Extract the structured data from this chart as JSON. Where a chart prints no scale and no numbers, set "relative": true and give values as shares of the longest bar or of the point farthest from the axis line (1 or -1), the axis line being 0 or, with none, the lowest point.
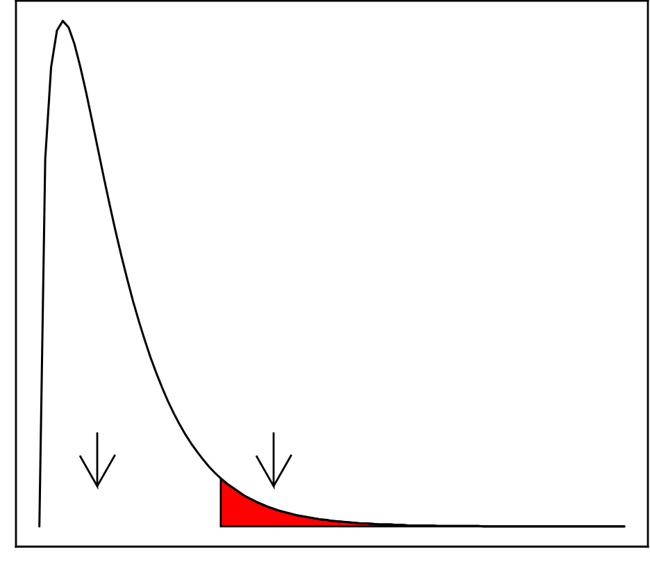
{
  "chart_data": {
    "type": "line",
    "relative": true,
    "categories": [
      null,
      null,
      null,
      null,
      null,
      null,
      null,
      null,
      null,
      null,
      null,
      null,
      null,
      null,
      null,
      null,
      null,
      null,
      null,
      null,
      null,
      null,
      null,
      null,
      null,
      null,
      null,
      null,
      null,
      null,
      null,
      null,
      null,
      null,
      null,
      null,
      null,
      null,
      null,
      null,
      null,
      null,
      null,
      null,
      null,
      null,
      null,
      null,
      null,
      null,
      null,
      null,
      null,
      null,
      null,
      null,
      null,
      null,
      null,
      null,
      null,
      null,
      null,
      null,
      null,
      null,
      null,
      null,
      null,
      null,
      null,
      null,
      null,
      null,
      null,
      null,
      null,
      null,
      null,
      null,
      null,
      null,
      null,
      null,
      null,
      null,
      null,
      null,
      null,
      null,
      null,
      null,
      null,
      null,
      null,
      null,
      null,
      null,
      null,
      null,
      null
    ],
    "series": [
      {
        "color": "#000000",
        "values": [
          0,
          0.727,
          0.908,
          0.981,
          1,
          0.987,
          0.954,
          0.909,
          0.858,
          0.803,
          0.747,
          0.691,
          0.637,
          0.585,
          0.536,
          0.49,
          0.446,
          0.406,
          0.369,
          0.334,
          0.303,
          0.274,
          0.247,
          0.223,
          0.201,
          0.181,
          0.163,
          0.147,
          0.132,
          0.118,
          0.106,
          0.095,
          0.085,
          0.077,
          0.069,
          0.061,
          0.055,
          0.049,
          0.044,
          0.039,
          0.035,
          0.031,
          0.028,
          0.025,
          0.022,
          0.02,
          0.018,
          0.016,
          0.014,
          0.013,
          0.011,
          0.01,
          0.009,
          0.008,
          0.007,
          0.006,
          0.006,
          0.005,
          0.004,
          0.004,
          0.004,
          0.003,
          0.003,
          0.002,
          0.002,
          0.002,
          0.002,
          0.002,
          0.001,
          0.001,
          0.001,
          0.001,
          0.001,
          0.001,
          0.001,
          0.001,
          0,
          0,
          0,
          0,
          0,
          0,
          0,
          0,
          0,
          0,
          0,
          0,
          0,
          0,
          0,
          0,
          0,
          0,
          0,
          0,
          0,
          0,
          0,
          0,
          0
        ]
      },
      {
        "type": "area",
        "color": "#ff0000",
        "values": [
          null,
          null,
          null,
          null,
          null,
          null,
          null,
          null,
          null,
          null,
          null,
          null,
          null,
          null,
          null,
          null,
          null,
          null,
          null,
          null,
          null,
          null,
          null,
          null,
          null,
          null,
          null,
          null,
          null,
          null,
          null,
          0.095,
          0.085,
          0.077,
          0.069,
          0.061,
          0.055,
          0.049,
          0.044,
          0.039,
          0.035,
          0.031,
          0.028,
          0.025,
          0.022,
          0.02,
          0.018,
          0.016,
          0.014,
          0.013,
          0.011,
          0.01,
          0.009,
          0.008,
          0.007,
          0.006,
          0.006,
          0.005,
          0.004,
          0.004,
          0.004,
          0.003,
          0.003,
          0.002,
          0.002,
          0.002,
          0.002,
          0.002,
          0.001,
          0.001,
          0.001,
          0.001,
          0.001,
          0.001,
          0.001,
          0.001,
          0,
          0,
          0,
          0,
          0,
          0,
          0,
          0,
          0,
          0,
          0,
          0,
          0,
          0,
          0,
          0,
          0,
          0,
          0,
          0,
          0,
          0,
          0,
          0,
          0
        ]
      }
    ]
  }
}
